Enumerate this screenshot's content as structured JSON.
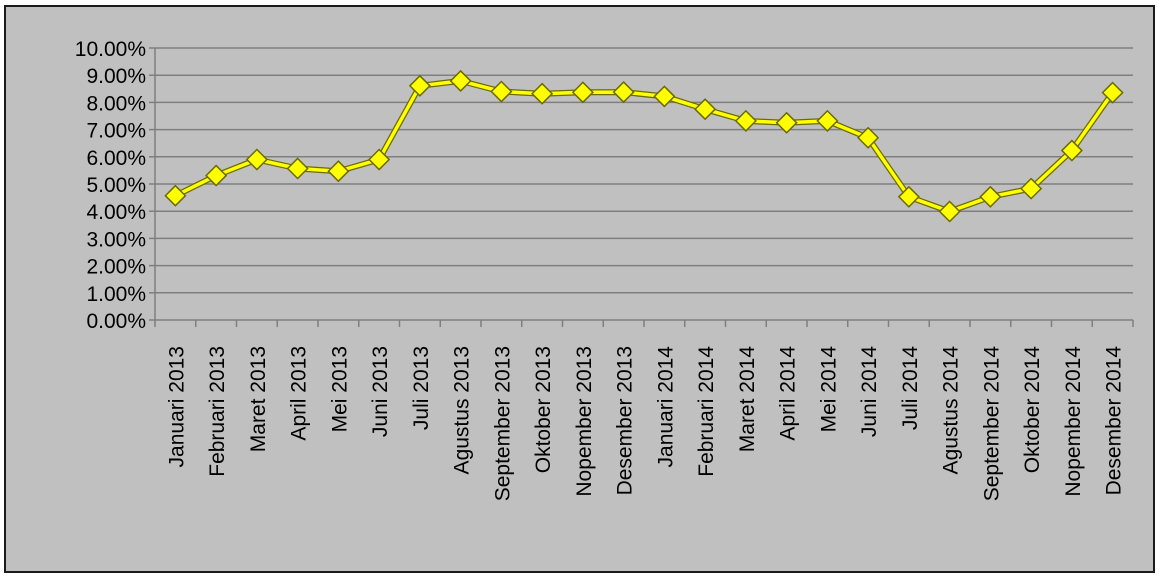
{
  "chart_data": {
    "type": "line",
    "categories": [
      "Januari 2013",
      "Februari 2013",
      "Maret 2013",
      "April 2013",
      "Mei 2013",
      "Juni 2013",
      "Juli 2013",
      "Agustus 2013",
      "September 2013",
      "Oktober 2013",
      "Nopember 2013",
      "Desember 2013",
      "Januari 2014",
      "Februari 2014",
      "Maret 2014",
      "April 2014",
      "Mei 2014",
      "Juni 2014",
      "Juli 2014",
      "Agustus 2014",
      "September 2014",
      "Oktober 2014",
      "Nopember 2014",
      "Desember 2014"
    ],
    "series": [
      {
        "values": [
          4.57,
          5.31,
          5.9,
          5.57,
          5.47,
          5.9,
          8.61,
          8.79,
          8.4,
          8.32,
          8.37,
          8.38,
          8.22,
          7.75,
          7.32,
          7.25,
          7.32,
          6.7,
          4.53,
          3.99,
          4.53,
          4.83,
          6.23,
          8.36
        ]
      }
    ],
    "y_ticks": [
      "10.00%",
      "9.00%",
      "8.00%",
      "7.00%",
      "6.00%",
      "5.00%",
      "4.00%",
      "3.00%",
      "2.00%",
      "1.00%",
      "0.00%"
    ],
    "ylim": [
      0,
      10
    ],
    "grid": true,
    "colors": {
      "background": "#c0c0c0",
      "line": "#ffff00",
      "marker_fill": "#ffff00",
      "marker_outline": "#6b6b00",
      "gridline": "#7f7f7f"
    }
  }
}
